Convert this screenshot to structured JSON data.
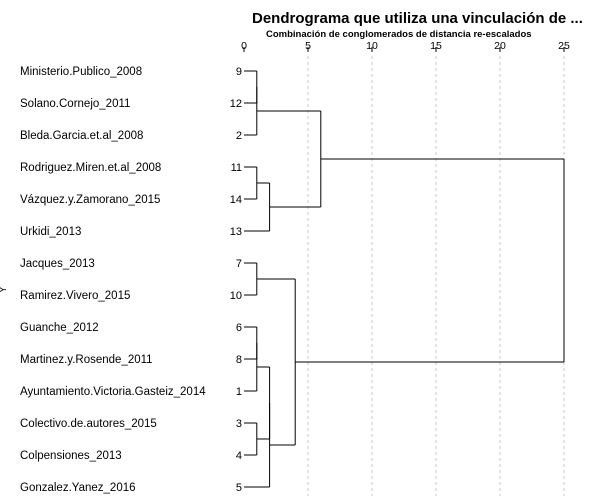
{
  "chart_data": {
    "type": "dendrogram",
    "title": "Dendrograma que utiliza una vinculación de ...",
    "xlabel": "Combinación de conglomerados de distancia re-escalados",
    "ylabel": "Y",
    "xlim": [
      0,
      25
    ],
    "x_ticks": [
      "0",
      "5",
      "10",
      "15",
      "20",
      "25"
    ],
    "x_tick_values": [
      0,
      5,
      10,
      15,
      20,
      25
    ],
    "grid": "vertical-dashed",
    "leaves": [
      {
        "name": "Ministerio.Publico_2008",
        "id": "9"
      },
      {
        "name": "Solano.Cornejo_2011",
        "id": "12"
      },
      {
        "name": "Bleda.Garcia.et.al_2008",
        "id": "2"
      },
      {
        "name": "Rodriguez.Miren.et.al_2008",
        "id": "11"
      },
      {
        "name": "Vázquez.y.Zamorano_2015",
        "id": "14"
      },
      {
        "name": "Urkidi_2013",
        "id": "13"
      },
      {
        "name": "Jacques_2013",
        "id": "7"
      },
      {
        "name": "Ramirez.Vivero_2015",
        "id": "10"
      },
      {
        "name": "Guanche_2012",
        "id": "6"
      },
      {
        "name": "Martinez.y.Rosende_2011",
        "id": "8"
      },
      {
        "name": "Ayuntamiento.Victoria.Gasteiz_2014",
        "id": "1"
      },
      {
        "name": "Colectivo.de.autores_2015",
        "id": "3"
      },
      {
        "name": "Colpensiones_2013",
        "id": "4"
      },
      {
        "name": "Gonzalez.Yanez_2016",
        "id": "5"
      }
    ],
    "merges": [
      {
        "id": "A",
        "children": [
          "L0",
          "L1"
        ],
        "height": 1.0
      },
      {
        "id": "B",
        "children": [
          "A",
          "L2"
        ],
        "height": 1.0
      },
      {
        "id": "C",
        "children": [
          "L3",
          "L4"
        ],
        "height": 1.0
      },
      {
        "id": "D",
        "children": [
          "C",
          "L5"
        ],
        "height": 2.0
      },
      {
        "id": "E",
        "children": [
          "B",
          "D"
        ],
        "height": 6.0
      },
      {
        "id": "F",
        "children": [
          "L6",
          "L7"
        ],
        "height": 1.0
      },
      {
        "id": "G",
        "children": [
          "L8",
          "L9"
        ],
        "height": 1.0
      },
      {
        "id": "H",
        "children": [
          "G",
          "L10"
        ],
        "height": 1.0
      },
      {
        "id": "I",
        "children": [
          "L11",
          "L12"
        ],
        "height": 1.0
      },
      {
        "id": "J",
        "children": [
          "H",
          "I"
        ],
        "height": 2.0
      },
      {
        "id": "K",
        "children": [
          "J",
          "L13"
        ],
        "height": 2.0
      },
      {
        "id": "M",
        "children": [
          "F",
          "K"
        ],
        "height": 4.0
      },
      {
        "id": "N",
        "children": [
          "E",
          "M"
        ],
        "height": 25.0
      }
    ]
  }
}
